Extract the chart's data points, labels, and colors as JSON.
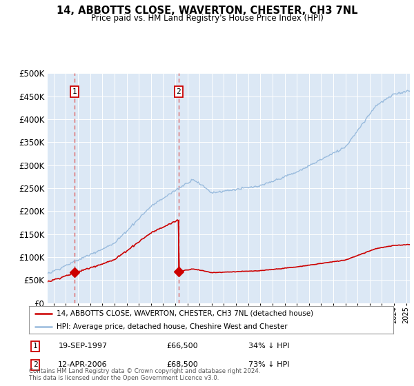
{
  "title": "14, ABBOTTS CLOSE, WAVERTON, CHESTER, CH3 7NL",
  "subtitle": "Price paid vs. HM Land Registry's House Price Index (HPI)",
  "sale1_date": 1997.72,
  "sale1_price": 66500,
  "sale2_date": 2006.28,
  "sale2_price": 68500,
  "ylim": [
    0,
    500000
  ],
  "xlim": [
    1995.5,
    2025.3
  ],
  "legend_line1": "14, ABBOTTS CLOSE, WAVERTON, CHESTER, CH3 7NL (detached house)",
  "legend_line2": "HPI: Average price, detached house, Cheshire West and Chester",
  "note1_date": "19-SEP-1997",
  "note1_price": "£66,500",
  "note1_hpi": "34% ↓ HPI",
  "note2_date": "12-APR-2006",
  "note2_price": "£68,500",
  "note2_hpi": "73% ↓ HPI",
  "footer": "Contains HM Land Registry data © Crown copyright and database right 2024.\nThis data is licensed under the Open Government Licence v3.0.",
  "red_color": "#cc0000",
  "blue_color": "#99bbdd",
  "dashed_red": "#dd6666",
  "plot_bg_color": "#dce8f5"
}
